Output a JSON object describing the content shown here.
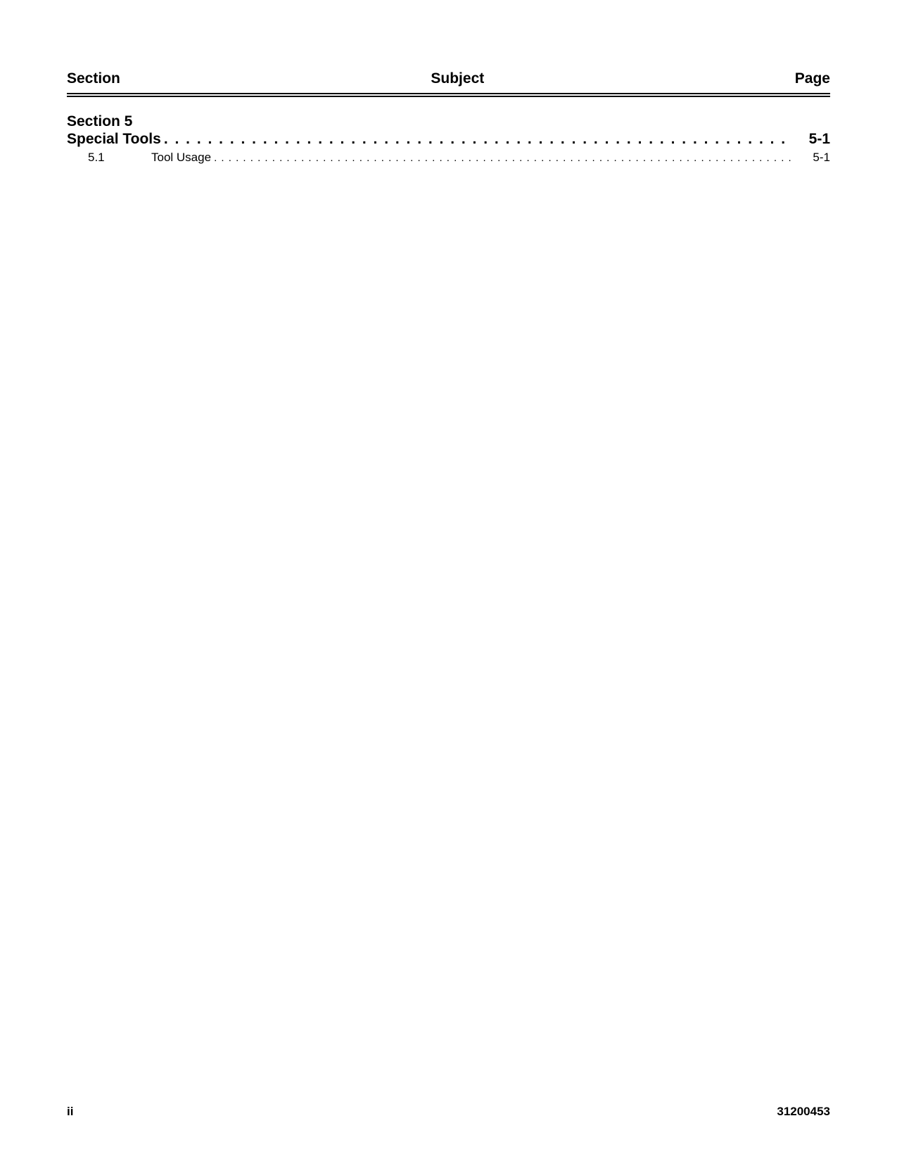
{
  "header": {
    "left": "Section",
    "center": "Subject",
    "right": "Page"
  },
  "toc": {
    "section_heading": "Section 5",
    "main_entry": {
      "title": "Special Tools",
      "page": "5-1"
    },
    "sub_entries": [
      {
        "num": "5.1",
        "title": "Tool Usage",
        "page": "5-1"
      }
    ]
  },
  "footer": {
    "page_num": "ii",
    "doc_id": "31200453"
  }
}
